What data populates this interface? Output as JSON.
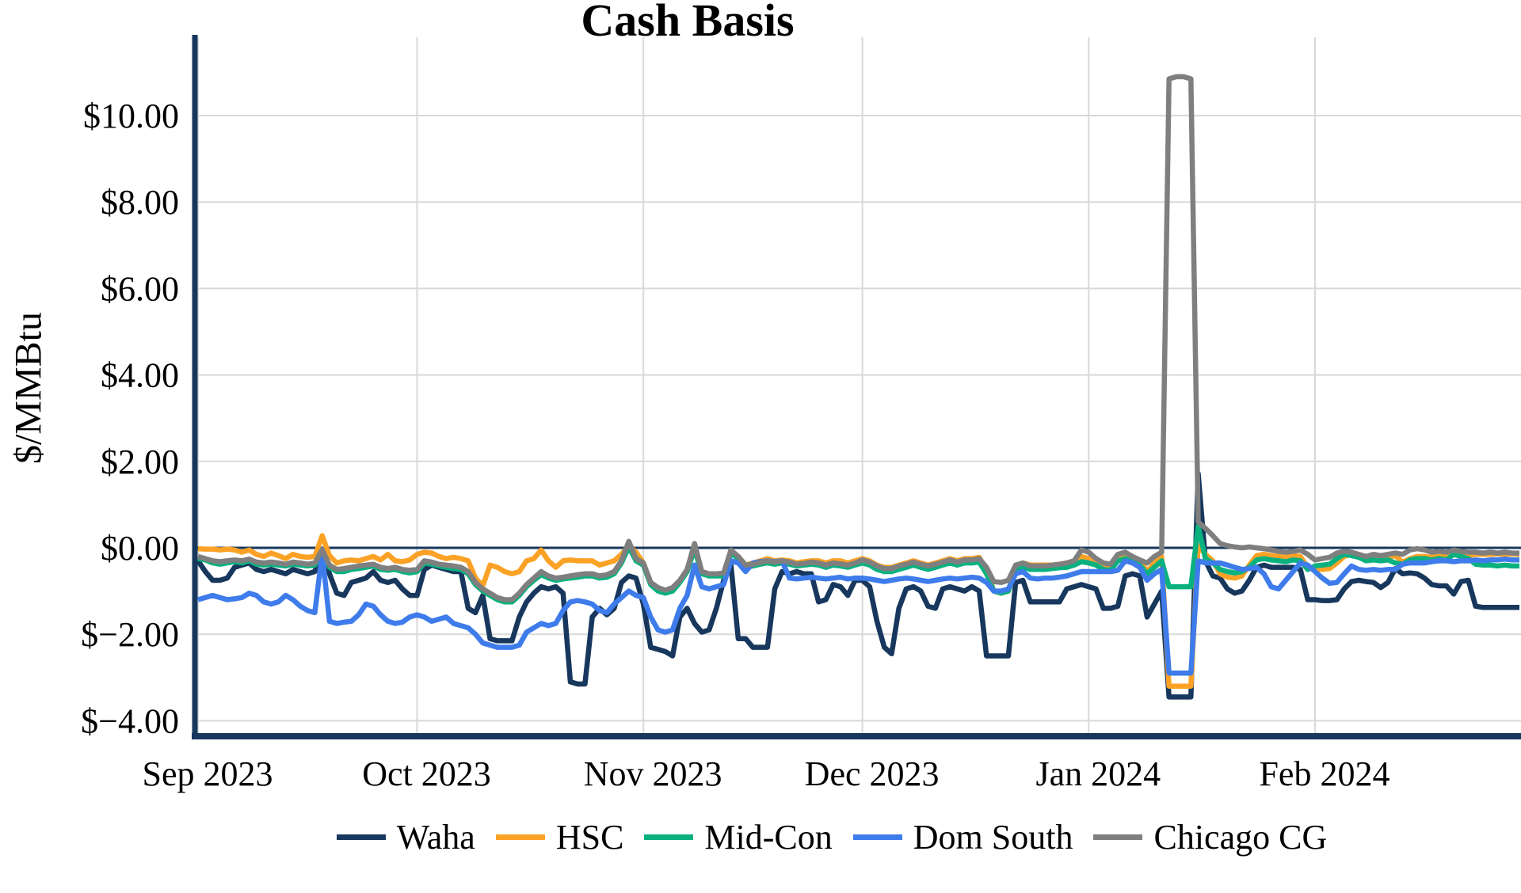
{
  "chart_data": {
    "type": "line",
    "title": "Cash Basis",
    "ylabel": "$/MMBtu",
    "xlabel": "",
    "x_start": "2023-09-01",
    "x_end": "2024-02-29",
    "frequency": "daily",
    "n_points": 182,
    "ylim": [
      -4.4,
      11.8
    ],
    "grid": true,
    "legend_position": "bottom",
    "colors": {
      "axis": "#17375D",
      "zero_line": "#17375D",
      "gridline": "#D9D9D9",
      "text": "#000000"
    },
    "y_ticks": [
      {
        "label": "$10.00",
        "value": 10
      },
      {
        "label": "$8.00",
        "value": 8
      },
      {
        "label": "$6.00",
        "value": 6
      },
      {
        "label": "$4.00",
        "value": 4
      },
      {
        "label": "$2.00",
        "value": 2
      },
      {
        "label": "$0.00",
        "value": 0
      },
      {
        "label": "$−2.00",
        "value": -2
      },
      {
        "label": "$−4.00",
        "value": -4
      }
    ],
    "x_ticks": [
      {
        "label": "Sep 2023",
        "day": 0
      },
      {
        "label": "Oct 2023",
        "day": 30
      },
      {
        "label": "Nov 2023",
        "day": 61
      },
      {
        "label": "Dec 2023",
        "day": 91
      },
      {
        "label": "Jan 2024",
        "day": 122
      },
      {
        "label": "Feb 2024",
        "day": 153
      }
    ],
    "series": [
      {
        "name": "Waha",
        "color": "#17375D",
        "values": [
          -0.3,
          -0.55,
          -0.75,
          -0.75,
          -0.7,
          -0.45,
          -0.4,
          -0.35,
          -0.5,
          -0.55,
          -0.5,
          -0.55,
          -0.6,
          -0.5,
          -0.55,
          -0.6,
          -0.55,
          -0.05,
          -0.6,
          -1.05,
          -1.1,
          -0.8,
          -0.75,
          -0.7,
          -0.55,
          -0.75,
          -0.8,
          -0.75,
          -0.95,
          -1.1,
          -1.1,
          -0.5,
          -0.4,
          -0.45,
          -0.5,
          -0.55,
          -0.55,
          -1.4,
          -1.5,
          -1.1,
          -2.1,
          -2.15,
          -2.15,
          -2.15,
          -1.6,
          -1.25,
          -1.05,
          -0.9,
          -0.95,
          -0.9,
          -1.05,
          -3.1,
          -3.15,
          -3.15,
          -1.6,
          -1.4,
          -1.55,
          -1.4,
          -0.8,
          -0.65,
          -0.7,
          -1.3,
          -2.3,
          -2.35,
          -2.4,
          -2.5,
          -1.6,
          -1.4,
          -1.75,
          -1.95,
          -1.9,
          -1.4,
          -0.75,
          -0.4,
          -2.1,
          -2.1,
          -2.3,
          -2.3,
          -2.3,
          -0.95,
          -0.55,
          -0.6,
          -0.55,
          -0.6,
          -0.6,
          -1.25,
          -1.2,
          -0.85,
          -0.9,
          -1.1,
          -0.75,
          -0.75,
          -0.9,
          -1.7,
          -2.3,
          -2.45,
          -1.4,
          -0.95,
          -0.9,
          -1.0,
          -1.35,
          -1.4,
          -0.95,
          -0.9,
          -0.95,
          -1.0,
          -0.9,
          -1.0,
          -2.5,
          -2.5,
          -2.5,
          -2.5,
          -0.8,
          -0.75,
          -1.25,
          -1.25,
          -1.25,
          -1.25,
          -1.25,
          -0.95,
          -0.9,
          -0.85,
          -0.9,
          -0.95,
          -1.4,
          -1.4,
          -1.35,
          -0.65,
          -0.6,
          -0.65,
          -1.6,
          -1.3,
          -1.0,
          -3.45,
          -3.45,
          -3.45,
          -3.45,
          1.72,
          -0.3,
          -0.65,
          -0.7,
          -0.95,
          -1.05,
          -1.0,
          -0.75,
          -0.45,
          -0.4,
          -0.45,
          -0.45,
          -0.45,
          -0.45,
          -0.5,
          -1.2,
          -1.2,
          -1.22,
          -1.22,
          -1.2,
          -0.95,
          -0.78,
          -0.75,
          -0.78,
          -0.8,
          -0.92,
          -0.8,
          -0.48,
          -0.6,
          -0.58,
          -0.6,
          -0.7,
          -0.85,
          -0.88,
          -0.88,
          -1.07,
          -0.78,
          -0.75,
          -1.35,
          -1.38,
          -1.38,
          -1.38,
          -1.38,
          -1.38,
          -1.38
        ]
      },
      {
        "name": "HSC",
        "color": "#FBA226",
        "values": [
          -0.02,
          -0.03,
          -0.03,
          -0.05,
          -0.03,
          -0.05,
          -0.1,
          -0.05,
          -0.15,
          -0.2,
          -0.12,
          -0.18,
          -0.25,
          -0.15,
          -0.2,
          -0.22,
          -0.2,
          0.28,
          -0.18,
          -0.35,
          -0.3,
          -0.28,
          -0.3,
          -0.25,
          -0.2,
          -0.28,
          -0.15,
          -0.3,
          -0.32,
          -0.28,
          -0.15,
          -0.1,
          -0.12,
          -0.2,
          -0.25,
          -0.22,
          -0.25,
          -0.3,
          -0.7,
          -0.88,
          -0.4,
          -0.45,
          -0.55,
          -0.6,
          -0.55,
          -0.3,
          -0.25,
          -0.05,
          -0.3,
          -0.45,
          -0.3,
          -0.28,
          -0.3,
          -0.3,
          -0.3,
          -0.4,
          -0.35,
          -0.3,
          -0.15,
          0.05,
          -0.1,
          -0.35,
          -0.8,
          -0.95,
          -1.0,
          -0.95,
          -0.75,
          -0.5,
          0.02,
          -0.55,
          -0.6,
          -0.6,
          -0.6,
          -0.08,
          -0.2,
          -0.4,
          -0.35,
          -0.3,
          -0.25,
          -0.3,
          -0.28,
          -0.3,
          -0.35,
          -0.32,
          -0.3,
          -0.3,
          -0.35,
          -0.3,
          -0.3,
          -0.35,
          -0.3,
          -0.25,
          -0.3,
          -0.4,
          -0.45,
          -0.45,
          -0.4,
          -0.35,
          -0.3,
          -0.35,
          -0.4,
          -0.35,
          -0.3,
          -0.25,
          -0.3,
          -0.25,
          -0.25,
          -0.22,
          -0.5,
          -1.0,
          -1.05,
          -1.0,
          -0.45,
          -0.35,
          -0.4,
          -0.4,
          -0.4,
          -0.4,
          -0.38,
          -0.35,
          -0.3,
          -0.2,
          -0.25,
          -0.3,
          -0.4,
          -0.45,
          -0.2,
          -0.15,
          -0.22,
          -0.3,
          -0.55,
          -0.35,
          -0.2,
          -3.2,
          -3.2,
          -3.2,
          -3.2,
          0.05,
          -0.15,
          -0.3,
          -0.6,
          -0.68,
          -0.7,
          -0.65,
          -0.4,
          -0.18,
          -0.15,
          -0.18,
          -0.2,
          -0.22,
          -0.18,
          -0.2,
          -0.45,
          -0.5,
          -0.5,
          -0.48,
          -0.35,
          -0.2,
          -0.15,
          -0.18,
          -0.22,
          -0.2,
          -0.25,
          -0.22,
          -0.18,
          -0.33,
          -0.25,
          -0.2,
          -0.2,
          -0.22,
          -0.2,
          -0.22,
          -0.1,
          -0.15,
          -0.18,
          -0.15,
          -0.15,
          -0.15,
          -0.14,
          -0.15,
          -0.14,
          -0.15
        ]
      },
      {
        "name": "Mid-Con",
        "color": "#0AB17F",
        "values": [
          -0.25,
          -0.28,
          -0.35,
          -0.38,
          -0.35,
          -0.32,
          -0.35,
          -0.3,
          -0.38,
          -0.4,
          -0.38,
          -0.4,
          -0.42,
          -0.38,
          -0.4,
          -0.42,
          -0.4,
          -0.05,
          -0.45,
          -0.55,
          -0.55,
          -0.5,
          -0.48,
          -0.45,
          -0.42,
          -0.5,
          -0.52,
          -0.5,
          -0.55,
          -0.58,
          -0.55,
          -0.35,
          -0.38,
          -0.42,
          -0.45,
          -0.48,
          -0.5,
          -0.6,
          -0.85,
          -1.0,
          -1.1,
          -1.2,
          -1.25,
          -1.25,
          -1.1,
          -0.9,
          -0.75,
          -0.62,
          -0.7,
          -0.75,
          -0.72,
          -0.7,
          -0.68,
          -0.65,
          -0.65,
          -0.7,
          -0.68,
          -0.6,
          -0.35,
          0.02,
          -0.3,
          -0.4,
          -0.85,
          -1.0,
          -1.05,
          -1.0,
          -0.8,
          -0.55,
          -0.02,
          -0.6,
          -0.65,
          -0.65,
          -0.65,
          -0.12,
          -0.25,
          -0.45,
          -0.42,
          -0.38,
          -0.35,
          -0.38,
          -0.35,
          -0.38,
          -0.42,
          -0.4,
          -0.38,
          -0.4,
          -0.45,
          -0.4,
          -0.42,
          -0.45,
          -0.4,
          -0.35,
          -0.4,
          -0.5,
          -0.55,
          -0.55,
          -0.5,
          -0.45,
          -0.4,
          -0.45,
          -0.5,
          -0.45,
          -0.4,
          -0.35,
          -0.4,
          -0.35,
          -0.35,
          -0.33,
          -0.6,
          -1.0,
          -1.05,
          -1.0,
          -0.5,
          -0.45,
          -0.5,
          -0.5,
          -0.5,
          -0.48,
          -0.46,
          -0.45,
          -0.4,
          -0.32,
          -0.35,
          -0.4,
          -0.5,
          -0.52,
          -0.3,
          -0.25,
          -0.32,
          -0.4,
          -0.6,
          -0.45,
          -0.3,
          -0.9,
          -0.9,
          -0.9,
          -0.9,
          0.5,
          -0.25,
          -0.35,
          -0.5,
          -0.55,
          -0.58,
          -0.55,
          -0.45,
          -0.28,
          -0.25,
          -0.28,
          -0.3,
          -0.32,
          -0.28,
          -0.3,
          -0.5,
          -0.42,
          -0.4,
          -0.38,
          -0.25,
          -0.15,
          -0.18,
          -0.22,
          -0.3,
          -0.28,
          -0.3,
          -0.28,
          -0.35,
          -0.38,
          -0.28,
          -0.25,
          -0.25,
          -0.28,
          -0.25,
          -0.28,
          -0.15,
          -0.2,
          -0.25,
          -0.38,
          -0.4,
          -0.4,
          -0.42,
          -0.4,
          -0.42,
          -0.42
        ]
      },
      {
        "name": "Dom South",
        "color": "#3F7CEB",
        "values": [
          -1.2,
          -1.15,
          -1.1,
          -1.15,
          -1.2,
          -1.18,
          -1.15,
          -1.05,
          -1.1,
          -1.25,
          -1.3,
          -1.25,
          -1.1,
          -1.2,
          -1.35,
          -1.45,
          -1.5,
          -0.12,
          -1.7,
          -1.75,
          -1.72,
          -1.7,
          -1.55,
          -1.3,
          -1.35,
          -1.55,
          -1.7,
          -1.75,
          -1.72,
          -1.6,
          -1.55,
          -1.6,
          -1.7,
          -1.65,
          -1.6,
          -1.75,
          -1.8,
          -1.85,
          -2.0,
          -2.2,
          -2.25,
          -2.3,
          -2.3,
          -2.3,
          -2.25,
          -1.95,
          -1.85,
          -1.75,
          -1.8,
          -1.75,
          -1.45,
          -1.25,
          -1.22,
          -1.25,
          -1.3,
          -1.45,
          -1.5,
          -1.3,
          -1.15,
          -1.0,
          -1.1,
          -1.15,
          -1.6,
          -1.9,
          -1.95,
          -1.9,
          -1.4,
          -1.1,
          -0.4,
          -0.9,
          -0.95,
          -0.9,
          -0.85,
          -0.3,
          -0.35,
          -0.55,
          -0.35,
          -0.32,
          -0.3,
          -0.32,
          -0.3,
          -0.7,
          -0.72,
          -0.7,
          -0.68,
          -0.7,
          -0.72,
          -0.7,
          -0.68,
          -0.72,
          -0.7,
          -0.7,
          -0.72,
          -0.75,
          -0.78,
          -0.75,
          -0.72,
          -0.7,
          -0.72,
          -0.75,
          -0.78,
          -0.75,
          -0.72,
          -0.7,
          -0.72,
          -0.7,
          -0.68,
          -0.7,
          -0.8,
          -1.0,
          -1.0,
          -0.95,
          -0.6,
          -0.55,
          -0.7,
          -0.72,
          -0.7,
          -0.7,
          -0.68,
          -0.65,
          -0.6,
          -0.55,
          -0.55,
          -0.55,
          -0.55,
          -0.55,
          -0.52,
          -0.3,
          -0.35,
          -0.45,
          -0.75,
          -0.6,
          -0.5,
          -2.9,
          -2.9,
          -2.9,
          -2.9,
          -0.3,
          -0.35,
          -0.35,
          -0.35,
          -0.4,
          -0.45,
          -0.5,
          -0.48,
          -0.45,
          -0.6,
          -0.9,
          -0.95,
          -0.75,
          -0.55,
          -0.35,
          -0.4,
          -0.55,
          -0.7,
          -0.82,
          -0.8,
          -0.6,
          -0.42,
          -0.5,
          -0.52,
          -0.5,
          -0.52,
          -0.5,
          -0.5,
          -0.38,
          -0.35,
          -0.35,
          -0.35,
          -0.32,
          -0.3,
          -0.3,
          -0.32,
          -0.3,
          -0.3,
          -0.28,
          -0.3,
          -0.28,
          -0.28,
          -0.26,
          -0.28,
          -0.28
        ]
      },
      {
        "name": "Chicago CG",
        "color": "#7F7F7F",
        "values": [
          -0.2,
          -0.25,
          -0.3,
          -0.32,
          -0.3,
          -0.28,
          -0.3,
          -0.26,
          -0.33,
          -0.35,
          -0.33,
          -0.35,
          -0.38,
          -0.33,
          -0.35,
          -0.38,
          -0.35,
          -0.04,
          -0.4,
          -0.5,
          -0.48,
          -0.45,
          -0.42,
          -0.4,
          -0.38,
          -0.45,
          -0.48,
          -0.45,
          -0.5,
          -0.52,
          -0.5,
          -0.3,
          -0.33,
          -0.38,
          -0.4,
          -0.42,
          -0.45,
          -0.55,
          -0.8,
          -0.95,
          -1.05,
          -1.15,
          -1.2,
          -1.2,
          -1.05,
          -0.85,
          -0.7,
          -0.55,
          -0.65,
          -0.7,
          -0.68,
          -0.65,
          -0.62,
          -0.6,
          -0.6,
          -0.65,
          -0.62,
          -0.55,
          -0.3,
          0.15,
          -0.25,
          -0.35,
          -0.8,
          -0.92,
          -0.98,
          -0.92,
          -0.75,
          -0.5,
          0.1,
          -0.55,
          -0.6,
          -0.6,
          -0.58,
          -0.05,
          -0.2,
          -0.4,
          -0.38,
          -0.34,
          -0.3,
          -0.33,
          -0.3,
          -0.33,
          -0.38,
          -0.36,
          -0.33,
          -0.35,
          -0.4,
          -0.35,
          -0.37,
          -0.4,
          -0.35,
          -0.28,
          -0.33,
          -0.42,
          -0.48,
          -0.48,
          -0.42,
          -0.38,
          -0.33,
          -0.38,
          -0.42,
          -0.38,
          -0.33,
          -0.28,
          -0.33,
          -0.28,
          -0.28,
          -0.25,
          -0.45,
          -0.78,
          -0.8,
          -0.75,
          -0.4,
          -0.35,
          -0.42,
          -0.42,
          -0.42,
          -0.4,
          -0.38,
          -0.35,
          -0.3,
          -0.05,
          -0.1,
          -0.25,
          -0.35,
          -0.38,
          -0.15,
          -0.1,
          -0.2,
          -0.28,
          -0.35,
          -0.2,
          -0.1,
          10.85,
          10.9,
          10.9,
          10.85,
          0.6,
          0.45,
          0.28,
          0.1,
          0.05,
          0.02,
          0.0,
          0.02,
          0.0,
          -0.02,
          -0.05,
          -0.08,
          -0.1,
          -0.08,
          -0.05,
          -0.15,
          -0.28,
          -0.25,
          -0.22,
          -0.12,
          -0.08,
          -0.1,
          -0.15,
          -0.2,
          -0.15,
          -0.18,
          -0.15,
          -0.12,
          -0.15,
          -0.05,
          -0.02,
          -0.05,
          -0.1,
          -0.08,
          -0.1,
          -0.05,
          -0.08,
          -0.1,
          -0.1,
          -0.12,
          -0.1,
          -0.12,
          -0.1,
          -0.12,
          -0.12
        ]
      }
    ]
  }
}
